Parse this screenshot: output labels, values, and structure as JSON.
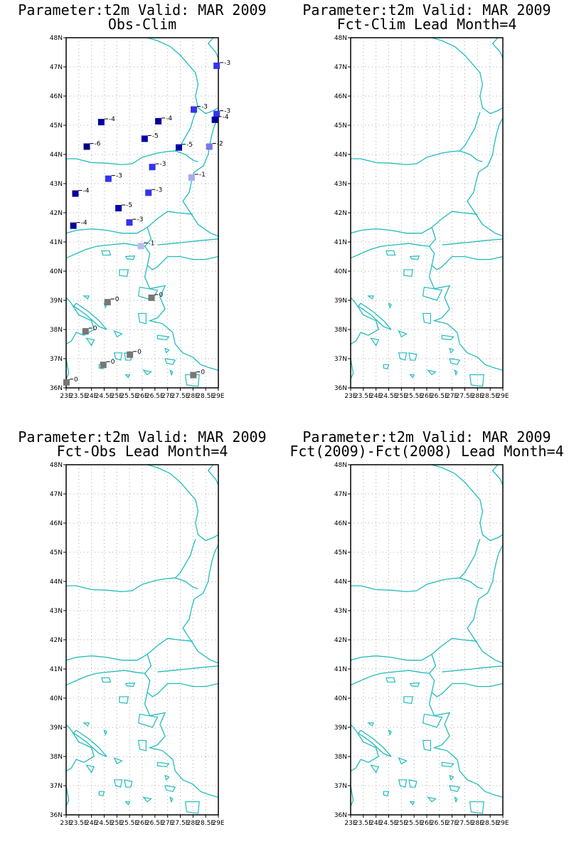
{
  "panels": [
    {
      "title_line1": "Parameter:t2m Valid: MAR 2009",
      "title_line2": "Obs-Clim"
    },
    {
      "title_line1": "Parameter:t2m Valid: MAR 2009",
      "title_line2": "Fct-Clim Lead Month=4"
    },
    {
      "title_line1": "Parameter:t2m Valid: MAR 2009",
      "title_line2": "Fct-Obs Lead Month=4"
    },
    {
      "title_line1": "Parameter:t2m Valid: MAR 2009",
      "title_line2": "Fct(2009)-Fct(2008) Lead Month=4"
    }
  ],
  "map": {
    "lat_labels": [
      "48N",
      "47N",
      "46N",
      "45N",
      "44N",
      "43N",
      "42N",
      "41N",
      "40N",
      "39N",
      "38N",
      "37N",
      "36N"
    ],
    "lon_labels": [
      "23E",
      "23.5E",
      "24E",
      "24.5E",
      "25E",
      "25.5E",
      "26E",
      "26.5E",
      "27E",
      "27.5E",
      "28E",
      "28.5E",
      "29E"
    ],
    "lat_range": [
      36,
      48
    ],
    "lon_range": [
      23,
      29
    ],
    "coast_color": "#22bbbb",
    "grid_color": "#aaaaaa"
  },
  "stations": [
    {
      "lon": 28.92,
      "lat": 47.05,
      "value": "-3",
      "color": "#3333ee"
    },
    {
      "lon": 28.02,
      "lat": 45.55,
      "value": "-3",
      "color": "#3333ee"
    },
    {
      "lon": 28.92,
      "lat": 45.4,
      "value": "-3",
      "color": "#3333ee"
    },
    {
      "lon": 28.85,
      "lat": 45.2,
      "value": "-4",
      "color": "#000099"
    },
    {
      "lon": 24.37,
      "lat": 45.12,
      "value": "-4",
      "color": "#000099"
    },
    {
      "lon": 26.08,
      "lat": 44.55,
      "value": "-5",
      "color": "#0000aa"
    },
    {
      "lon": 26.62,
      "lat": 45.15,
      "value": "-4",
      "color": "#000099"
    },
    {
      "lon": 23.8,
      "lat": 44.28,
      "value": "-6",
      "color": "#000088"
    },
    {
      "lon": 27.43,
      "lat": 44.25,
      "value": "-5",
      "color": "#0000aa"
    },
    {
      "lon": 28.63,
      "lat": 44.28,
      "value": "-2",
      "color": "#7777ee"
    },
    {
      "lon": 26.38,
      "lat": 43.58,
      "value": "-3",
      "color": "#3333ee"
    },
    {
      "lon": 27.93,
      "lat": 43.22,
      "value": "-1",
      "color": "#aaaaee"
    },
    {
      "lon": 24.65,
      "lat": 43.18,
      "value": "-3",
      "color": "#3333ee"
    },
    {
      "lon": 23.35,
      "lat": 42.67,
      "value": "-4",
      "color": "#000099"
    },
    {
      "lon": 26.23,
      "lat": 42.7,
      "value": "-3",
      "color": "#3333ee"
    },
    {
      "lon": 25.05,
      "lat": 42.17,
      "value": "-5",
      "color": "#0000aa"
    },
    {
      "lon": 25.48,
      "lat": 41.68,
      "value": "-3",
      "color": "#3333ee"
    },
    {
      "lon": 23.27,
      "lat": 41.57,
      "value": "-4",
      "color": "#000099"
    },
    {
      "lon": 25.93,
      "lat": 40.87,
      "value": "-1",
      "color": "#bbbbee"
    },
    {
      "lon": 26.35,
      "lat": 39.1,
      "value": "0",
      "color": "#777777"
    },
    {
      "lon": 24.62,
      "lat": 38.95,
      "value": "0",
      "color": "#777777"
    },
    {
      "lon": 23.75,
      "lat": 37.95,
      "value": "0",
      "color": "#777777"
    },
    {
      "lon": 25.5,
      "lat": 37.15,
      "value": "0",
      "color": "#777777"
    },
    {
      "lon": 24.45,
      "lat": 36.8,
      "value": "0",
      "color": "#777777"
    },
    {
      "lon": 28.0,
      "lat": 36.45,
      "value": "0",
      "color": "#777777"
    },
    {
      "lon": 23.0,
      "lat": 36.2,
      "value": "0",
      "color": "#777777"
    }
  ]
}
